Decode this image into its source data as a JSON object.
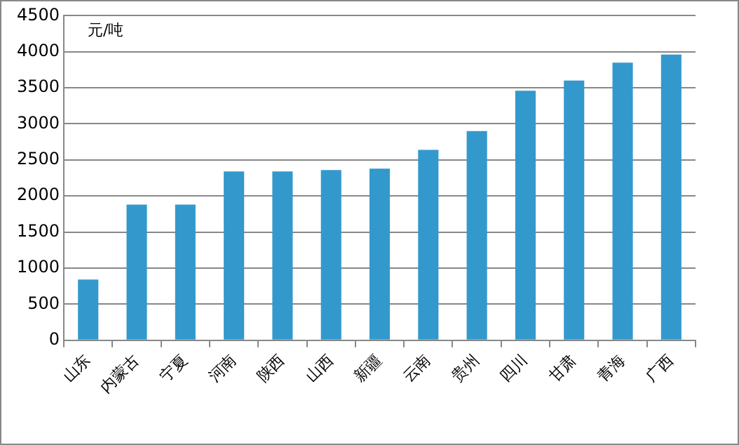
{
  "chart_data": {
    "type": "bar",
    "ylabel": "元/吨",
    "categories": [
      "山东",
      "内蒙古",
      "宁夏",
      "河南",
      "陕西",
      "山西",
      "新疆",
      "云南",
      "贵州",
      "四川",
      "甘肃",
      "青海",
      "广西"
    ],
    "values": [
      840,
      1880,
      1880,
      2340,
      2340,
      2360,
      2380,
      2640,
      2900,
      3460,
      3600,
      3850,
      3960
    ],
    "color": "#3399cc",
    "ylim": [
      0,
      4500
    ],
    "yticks": [
      0,
      500,
      1000,
      1500,
      2000,
      2500,
      3000,
      3500,
      4000,
      4500
    ],
    "grid": "y",
    "legend": false
  }
}
